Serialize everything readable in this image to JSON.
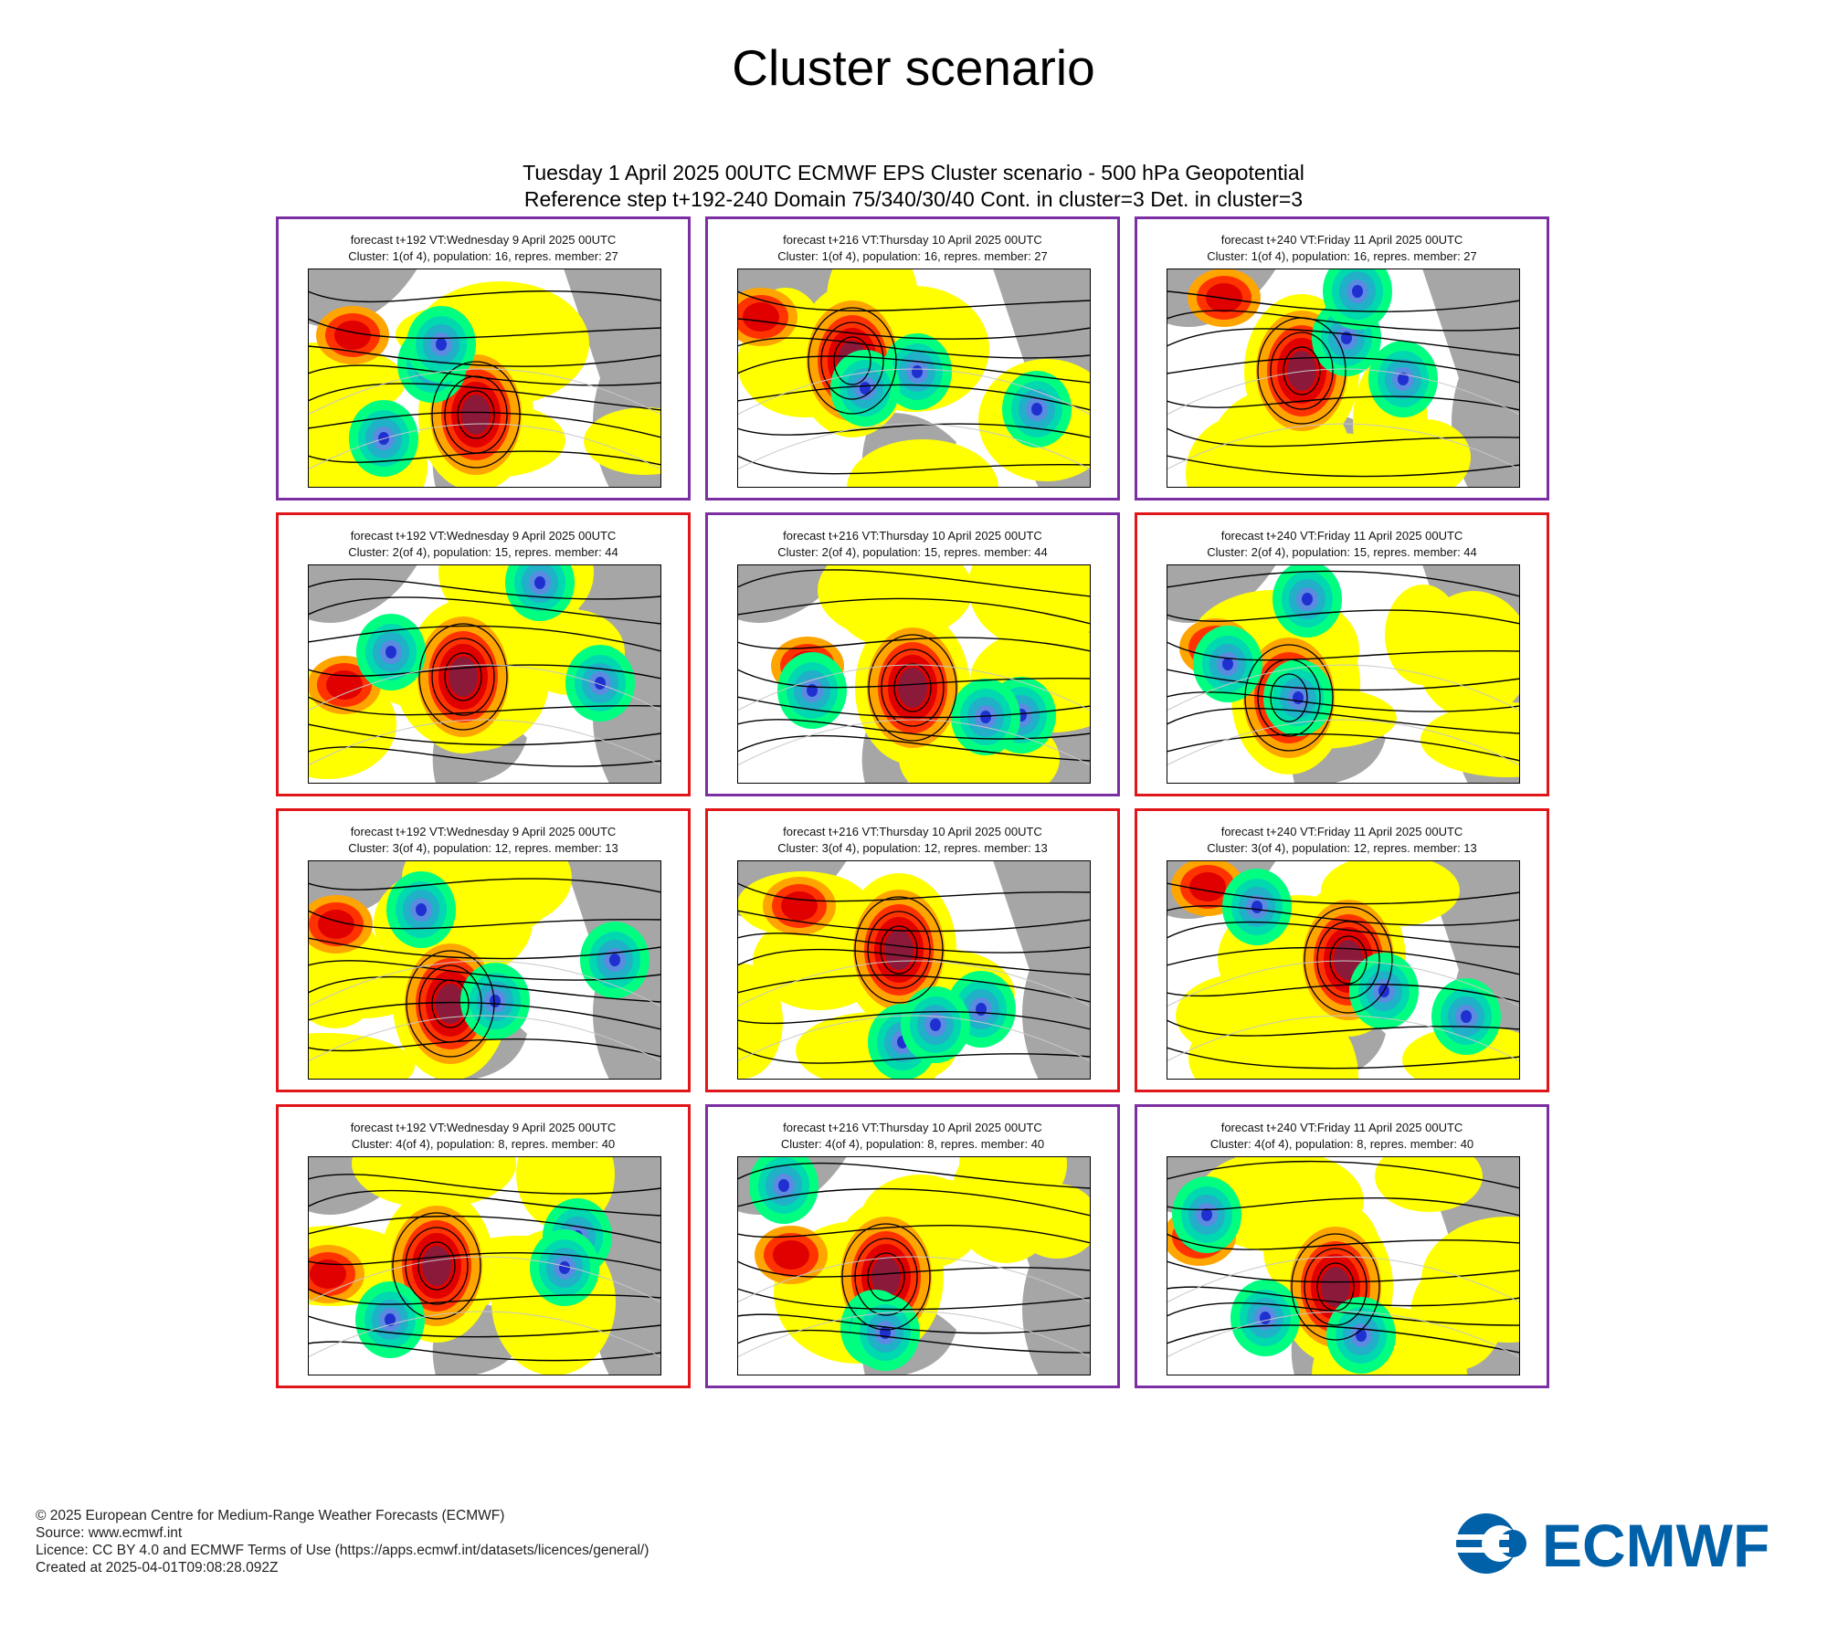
{
  "page_title": "Cluster scenario",
  "header": {
    "line1": "Tuesday 1 April 2025 00UTC ECMWF EPS Cluster scenario - 500 hPa Geopotential",
    "line2": "Reference step t+192-240 Domain 75/340/30/40 Cont. in cluster=3 Det. in cluster=3"
  },
  "colors": {
    "frame_red": "#e0161b",
    "frame_purple": "#7b2fa3",
    "land_grey": "#a6a6a6",
    "anomaly_positive": [
      "#ffff00",
      "#ffa500",
      "#ff3300",
      "#e00000",
      "#8b1a3a"
    ],
    "anomaly_negative": [
      "#00ff80",
      "#00d8b0",
      "#20b0c8",
      "#5b8be0",
      "#2030d0"
    ],
    "logo_blue": "#0060a8"
  },
  "panels": [
    {
      "line1": "forecast t+192 VT:Wednesday 9 April 2025 00UTC",
      "line2": "Cluster: 1(of 4), population: 16, repres. member: 27",
      "frame": "purple"
    },
    {
      "line1": "forecast t+216 VT:Thursday 10 April 2025 00UTC",
      "line2": "Cluster: 1(of 4), population: 16, repres. member: 27",
      "frame": "purple"
    },
    {
      "line1": "forecast t+240 VT:Friday 11 April 2025 00UTC",
      "line2": "Cluster: 1(of 4), population: 16, repres. member: 27",
      "frame": "purple"
    },
    {
      "line1": "forecast t+192 VT:Wednesday 9 April 2025 00UTC",
      "line2": "Cluster: 2(of 4), population: 15, repres. member: 44",
      "frame": "red"
    },
    {
      "line1": "forecast t+216 VT:Thursday 10 April 2025 00UTC",
      "line2": "Cluster: 2(of 4), population: 15, repres. member: 44",
      "frame": "purple"
    },
    {
      "line1": "forecast t+240 VT:Friday 11 April 2025 00UTC",
      "line2": "Cluster: 2(of 4), population: 15, repres. member: 44",
      "frame": "red"
    },
    {
      "line1": "forecast t+192 VT:Wednesday 9 April 2025 00UTC",
      "line2": "Cluster: 3(of 4), population: 12, repres. member: 13",
      "frame": "red"
    },
    {
      "line1": "forecast t+216 VT:Thursday 10 April 2025 00UTC",
      "line2": "Cluster: 3(of 4), population: 12, repres. member: 13",
      "frame": "red"
    },
    {
      "line1": "forecast t+240 VT:Friday 11 April 2025 00UTC",
      "line2": "Cluster: 3(of 4), population: 12, repres. member: 13",
      "frame": "red"
    },
    {
      "line1": "forecast t+192 VT:Wednesday 9 April 2025 00UTC",
      "line2": "Cluster: 4(of 4), population: 8, repres. member: 40",
      "frame": "red"
    },
    {
      "line1": "forecast t+216 VT:Thursday 10 April 2025 00UTC",
      "line2": "Cluster: 4(of 4), population: 8, repres. member: 40",
      "frame": "purple"
    },
    {
      "line1": "forecast t+240 VT:Friday 11 April 2025 00UTC",
      "line2": "Cluster: 4(of 4), population: 8, repres. member: 40",
      "frame": "purple"
    }
  ],
  "footer": {
    "copyright": "© 2025 European Centre for Medium-Range Weather Forecasts (ECMWF)",
    "source": "Source: www.ecmwf.int",
    "licence": "Licence: CC BY 4.0 and ECMWF Terms of Use (https://apps.ecmwf.int/datasets/licences/general/)",
    "created": "Created at 2025-04-01T09:08:28.092Z"
  },
  "logo": {
    "text": "ECMWF",
    "icon": "ecmwf-logo-icon"
  }
}
